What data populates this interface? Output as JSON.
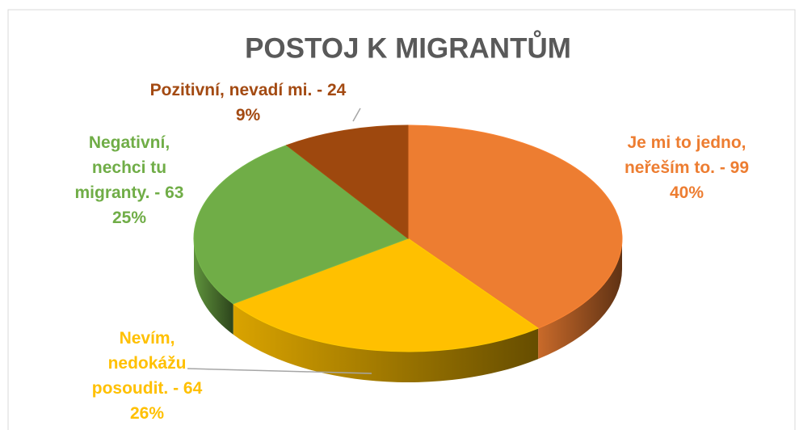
{
  "chart_data": {
    "type": "pie3d",
    "title": "POSTOJ K MIGRANTŮM",
    "values": [
      99,
      64,
      63,
      24
    ],
    "value_labels": [
      [
        "Je mi to jedno,",
        "neřeším to. - 99"
      ],
      [
        "Nevím,",
        "nedokážu",
        "posoudit. - 64"
      ],
      [
        "Negativní,",
        "nechci tu",
        "migranty. - 63"
      ],
      [
        "Pozitivní, nevadí mi. - 24"
      ]
    ],
    "percentages": [
      40,
      26,
      25,
      9
    ],
    "percentage_labels": [
      "40%",
      "26%",
      "25%",
      "9%"
    ],
    "colors": [
      "#ed7d31",
      "#ffc000",
      "#70ad47",
      "#9e480e"
    ]
  }
}
